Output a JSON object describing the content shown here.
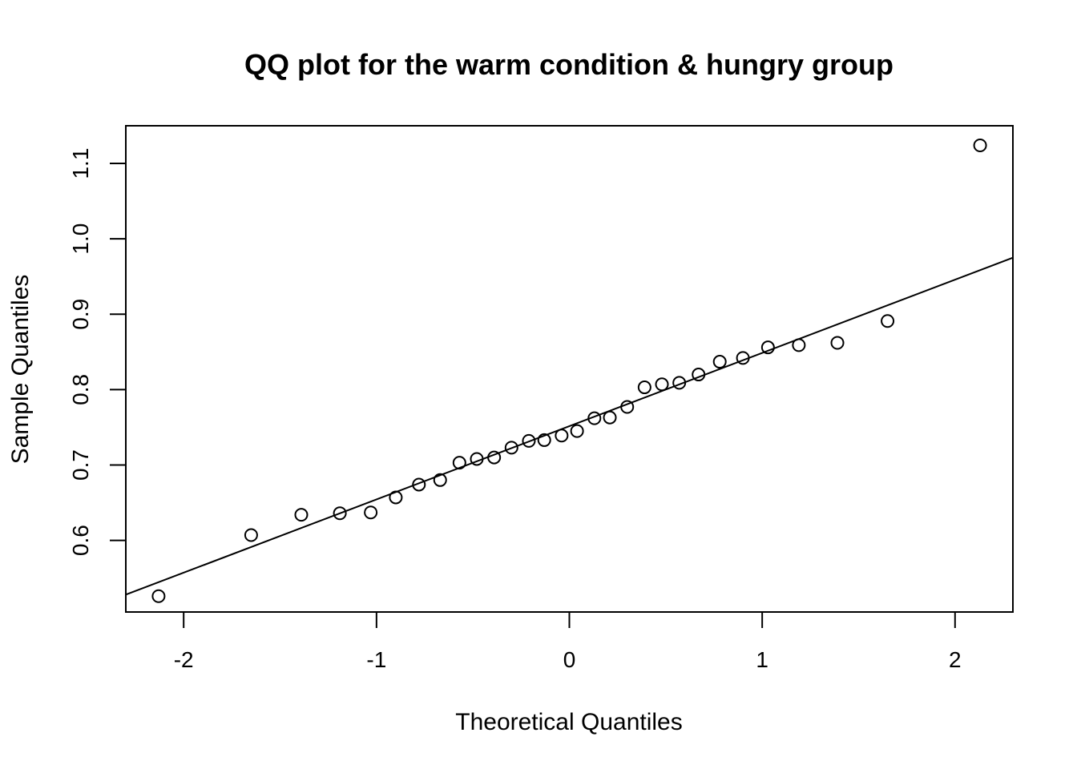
{
  "chart_data": {
    "type": "scatter",
    "title": "QQ plot for the warm condition & hungry group",
    "xlabel": "Theoretical Quantiles",
    "ylabel": "Sample Quantiles",
    "xlim": [
      -2.3,
      2.3
    ],
    "ylim": [
      0.505,
      1.15
    ],
    "x_ticks": [
      -2,
      -1,
      0,
      1,
      2
    ],
    "x_tick_labels": [
      "-2",
      "-1",
      "0",
      "1",
      "2"
    ],
    "y_ticks": [
      0.6,
      0.7,
      0.8,
      0.9,
      1.0,
      1.1
    ],
    "y_tick_labels": [
      "0.6",
      "0.7",
      "0.8",
      "0.9",
      "1.0",
      "1.1"
    ],
    "grid": false,
    "points": {
      "x": [
        -2.13,
        -1.65,
        -1.39,
        -1.19,
        -1.03,
        -0.9,
        -0.78,
        -0.67,
        -0.57,
        -0.48,
        -0.39,
        -0.3,
        -0.21,
        -0.13,
        -0.04,
        0.04,
        0.13,
        0.21,
        0.3,
        0.39,
        0.48,
        0.57,
        0.67,
        0.78,
        0.9,
        1.03,
        1.19,
        1.39,
        1.65,
        2.13
      ],
      "y": [
        0.526,
        0.607,
        0.634,
        0.636,
        0.637,
        0.657,
        0.674,
        0.68,
        0.703,
        0.708,
        0.71,
        0.723,
        0.732,
        0.733,
        0.739,
        0.745,
        0.762,
        0.763,
        0.777,
        0.803,
        0.807,
        0.809,
        0.82,
        0.837,
        0.842,
        0.856,
        0.859,
        0.862,
        0.891,
        1.124
      ]
    },
    "reference_line": {
      "x": [
        -2.3,
        2.3
      ],
      "y": [
        0.528,
        0.975
      ]
    }
  }
}
